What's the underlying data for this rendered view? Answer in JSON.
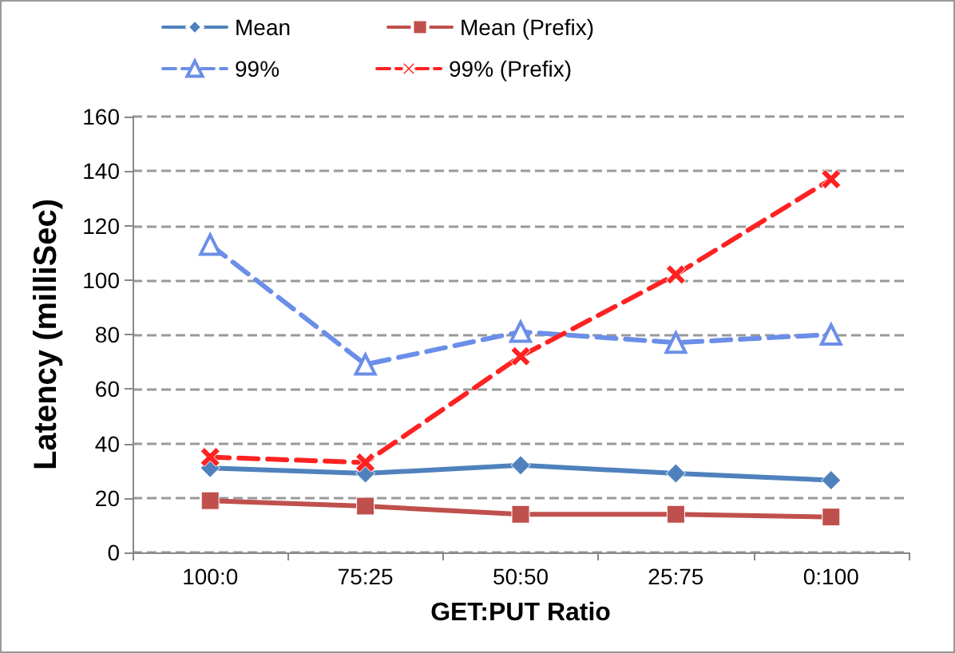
{
  "chart_data": {
    "type": "line",
    "xlabel": "GET:PUT Ratio",
    "ylabel": "Latency (milliSec)",
    "categories": [
      "100:0",
      "75:25",
      "50:50",
      "25:75",
      "0:100"
    ],
    "series": [
      {
        "name": "Mean",
        "color": "#4f81bd",
        "values": [
          31,
          29,
          32,
          29,
          26.5
        ],
        "marker": "diamond",
        "line_style": "solid"
      },
      {
        "name": "Mean (Prefix)",
        "color": "#c0504d",
        "values": [
          19,
          17,
          14,
          14,
          13
        ],
        "marker": "square",
        "line_style": "solid"
      },
      {
        "name": "99%",
        "color": "#6b8ee8",
        "values": [
          113,
          69,
          81,
          77,
          80
        ],
        "marker": "triangle",
        "line_style": "dashed"
      },
      {
        "name": "99% (Prefix)",
        "color": "#ff2222",
        "values": [
          35,
          33,
          72,
          102,
          137
        ],
        "marker": "cross",
        "line_style": "dashed"
      }
    ],
    "ylim": [
      0,
      160
    ],
    "yticks": [
      0,
      20,
      40,
      60,
      80,
      100,
      120,
      140,
      160
    ],
    "grid": "y",
    "legend": "top"
  }
}
